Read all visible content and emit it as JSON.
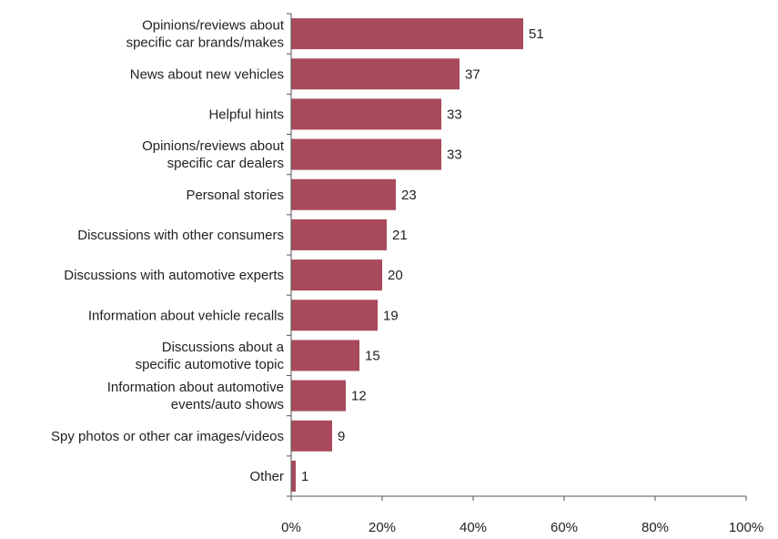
{
  "colors": {
    "bar": "#A84A5B",
    "axis": "#555555",
    "text": "#222222"
  },
  "chart_data": {
    "type": "bar",
    "orientation": "horizontal",
    "categories": [
      [
        "Opinions/reviews about",
        "specific car brands/makes"
      ],
      [
        "News about new vehicles"
      ],
      [
        "Helpful hints"
      ],
      [
        "Opinions/reviews about",
        "specific car dealers"
      ],
      [
        "Personal stories"
      ],
      [
        "Discussions with other consumers"
      ],
      [
        "Discussions with automotive experts"
      ],
      [
        "Information about vehicle recalls"
      ],
      [
        "Discussions about a",
        "specific automotive topic"
      ],
      [
        "Information about automotive",
        "events/auto shows"
      ],
      [
        "Spy photos or other car images/videos"
      ],
      [
        "Other"
      ]
    ],
    "values": [
      51,
      37,
      33,
      33,
      23,
      21,
      20,
      19,
      15,
      12,
      9,
      1
    ],
    "xlim": [
      0,
      100
    ],
    "xticks": [
      0,
      20,
      40,
      60,
      80,
      100
    ],
    "xtick_labels": [
      "0%",
      "20%",
      "40%",
      "60%",
      "80%",
      "100%"
    ],
    "title": "",
    "xlabel": "",
    "ylabel": "",
    "grid": false,
    "legend": "none"
  }
}
